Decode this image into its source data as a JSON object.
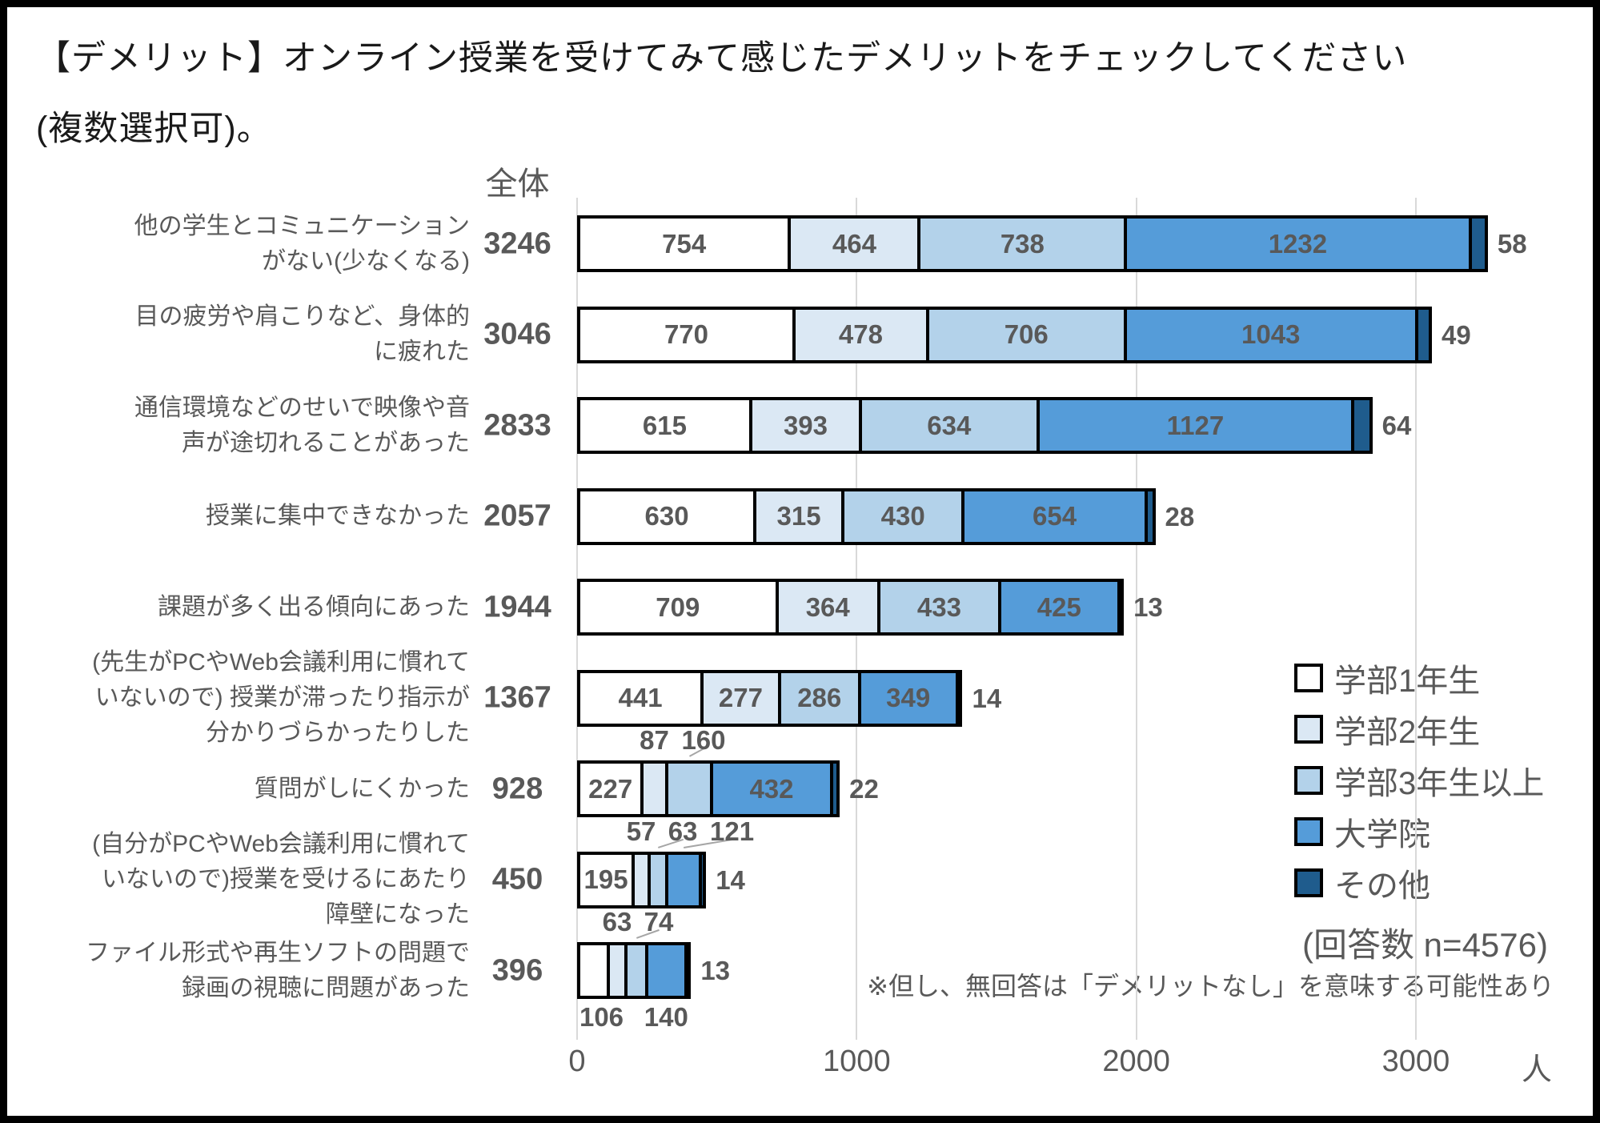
{
  "title": {
    "line1": "【デメリット】オンライン授業を受けてみて感じたデメリットをチェックしてください",
    "line2": "(複数選択可)。"
  },
  "chart_data": {
    "type": "bar",
    "orientation": "horizontal",
    "stacked": true,
    "grid": true,
    "total_header": "全体",
    "unit_label": "人",
    "x_ticks": [
      0,
      1000,
      2000,
      3000
    ],
    "x_max": 3587,
    "legend_position": "right-bottom",
    "series_names": [
      "学部1年生",
      "学部2年生",
      "学部3年生以上",
      "大学院",
      "その他"
    ],
    "series_colors": [
      "#FFFFFF",
      "#DBE8F4",
      "#B3D2EA",
      "#559CD9",
      "#1F5C8D"
    ],
    "text_color": "#595959",
    "gridline_color": "#D9D9D9",
    "rows": [
      {
        "label_lines": [
          "他の学生とコミュニケーション",
          "がない(少なくなる)"
        ],
        "total": 3246,
        "values": [
          754,
          464,
          738,
          1232,
          58
        ],
        "placements": [
          "in",
          "in",
          "in",
          "in",
          "out"
        ]
      },
      {
        "label_lines": [
          "目の疲労や肩こりなど、身体的",
          "に疲れた"
        ],
        "total": 3046,
        "values": [
          770,
          478,
          706,
          1043,
          49
        ],
        "placements": [
          "in",
          "in",
          "in",
          "in",
          "out"
        ]
      },
      {
        "label_lines": [
          "通信環境などのせいで映像や音",
          "声が途切れることがあった"
        ],
        "total": 2833,
        "values": [
          615,
          393,
          634,
          1127,
          64
        ],
        "placements": [
          "in",
          "in",
          "in",
          "in",
          "out"
        ]
      },
      {
        "label_lines": [
          "授業に集中できなかった"
        ],
        "total": 2057,
        "values": [
          630,
          315,
          430,
          654,
          28
        ],
        "placements": [
          "in",
          "in",
          "in",
          "in",
          "out"
        ]
      },
      {
        "label_lines": [
          "課題が多く出る傾向にあった"
        ],
        "total": 1944,
        "values": [
          709,
          364,
          433,
          425,
          13
        ],
        "placements": [
          "in",
          "in",
          "in",
          "in",
          "out"
        ]
      },
      {
        "label_lines": [
          "(先生がPCやWeb会議利用に慣れて",
          "いないので) 授業が滞ったり指示が",
          "分かりづらかったりした"
        ],
        "total": 1367,
        "values": [
          441,
          277,
          286,
          349,
          14
        ],
        "placements": [
          "in",
          "in",
          "in",
          "in",
          "out"
        ]
      },
      {
        "label_lines": [
          "質問がしにくかった"
        ],
        "total": 928,
        "values": [
          227,
          87,
          160,
          432,
          22
        ],
        "placements": [
          "in",
          "above",
          "above",
          "in",
          "out"
        ]
      },
      {
        "label_lines": [
          "(自分がPCやWeb会議利用に慣れて",
          "いないので)授業を受けるにあたり",
          "障壁になった"
        ],
        "total": 450,
        "values": [
          195,
          57,
          63,
          121,
          14
        ],
        "placements": [
          "in",
          "above",
          "above",
          "above",
          "out"
        ]
      },
      {
        "label_lines": [
          "ファイル形式や再生ソフトの問題で",
          "録画の視聴に問題があった"
        ],
        "total": 396,
        "values": [
          106,
          63,
          74,
          140,
          13
        ],
        "placements": [
          "below",
          "above",
          "above",
          "below",
          "out"
        ]
      }
    ],
    "annotations": {
      "respondents": "(回答数 n=4576)",
      "note": "※但し、無回答は「デメリットなし」を意味する可能性あり"
    }
  }
}
